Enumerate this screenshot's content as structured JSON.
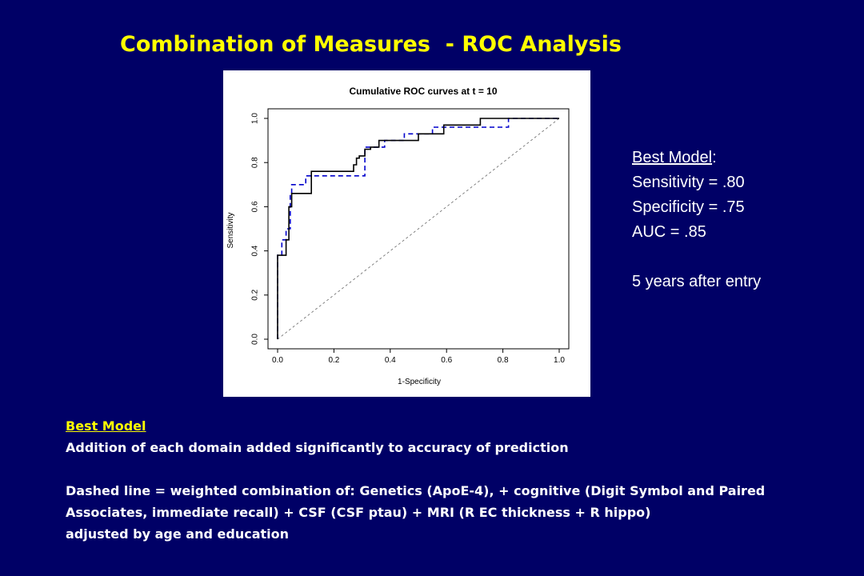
{
  "slide": {
    "title": "Combination of Measures  - ROC Analysis"
  },
  "side_box": {
    "heading": "Best Model",
    "heading_suffix": ":",
    "lines": [
      "Sensitivity = .80",
      "Specificity = .75",
      "AUC = .85",
      "5 years after entry"
    ]
  },
  "notes": {
    "heading": "Best Model",
    "line1": "Addition of each domain added significantly to accuracy of prediction",
    "line2": "Dashed line = weighted combination of: Genetics (ApoE-4), + cognitive (Digit Symbol and Paired",
    "line3": "Associates, immediate recall) + CSF (CSF ptau) + MRI (R EC thickness + R hippo)",
    "line4": "adjusted by age and education"
  },
  "colors": {
    "background": "#000066",
    "title": "#ffff00",
    "solid_series": "#000000",
    "dashed_series": "#0000cc",
    "reference_line": "#666666"
  },
  "chart_data": {
    "type": "line",
    "title": "Cumulative ROC curves at t = 10",
    "xlabel": "1-Specificity",
    "ylabel": "Sensitivity",
    "xlim": [
      0,
      1
    ],
    "ylim": [
      0,
      1
    ],
    "xticks": [
      "0.0",
      "0.2",
      "0.4",
      "0.6",
      "0.8",
      "1.0"
    ],
    "yticks": [
      "0.0",
      "0.2",
      "0.4",
      "0.6",
      "0.8",
      "1.0"
    ],
    "grid": false,
    "legend": "none",
    "series": [
      {
        "style": "solid",
        "x": [
          0,
          0,
          0.01,
          0.01,
          0.03,
          0.03,
          0.04,
          0.04,
          0.05,
          0.05,
          0.12,
          0.12,
          0.27,
          0.27,
          0.28,
          0.28,
          0.29,
          0.29,
          0.31,
          0.31,
          0.33,
          0.33,
          0.36,
          0.36,
          0.42,
          0.42,
          0.5,
          0.5,
          0.59,
          0.59,
          0.72,
          0.72,
          1.0
        ],
        "y": [
          0,
          0.38,
          0.38,
          0.38,
          0.38,
          0.45,
          0.45,
          0.6,
          0.6,
          0.66,
          0.66,
          0.76,
          0.76,
          0.79,
          0.79,
          0.82,
          0.82,
          0.83,
          0.83,
          0.86,
          0.86,
          0.87,
          0.87,
          0.9,
          0.9,
          0.9,
          0.9,
          0.93,
          0.93,
          0.97,
          0.97,
          1.0,
          1.0
        ]
      },
      {
        "style": "dashed",
        "x": [
          0,
          0,
          0.015,
          0.015,
          0.03,
          0.03,
          0.045,
          0.045,
          0.05,
          0.05,
          0.1,
          0.1,
          0.31,
          0.31,
          0.38,
          0.38,
          0.45,
          0.45,
          0.55,
          0.55,
          0.72,
          0.72,
          0.82,
          0.82,
          1.0
        ],
        "y": [
          0,
          0.38,
          0.38,
          0.45,
          0.45,
          0.5,
          0.5,
          0.66,
          0.66,
          0.7,
          0.7,
          0.74,
          0.74,
          0.87,
          0.87,
          0.9,
          0.9,
          0.93,
          0.93,
          0.96,
          0.96,
          0.96,
          0.96,
          1.0,
          1.0
        ]
      },
      {
        "style": "reference",
        "x": [
          0,
          1
        ],
        "y": [
          0,
          1
        ]
      }
    ]
  }
}
